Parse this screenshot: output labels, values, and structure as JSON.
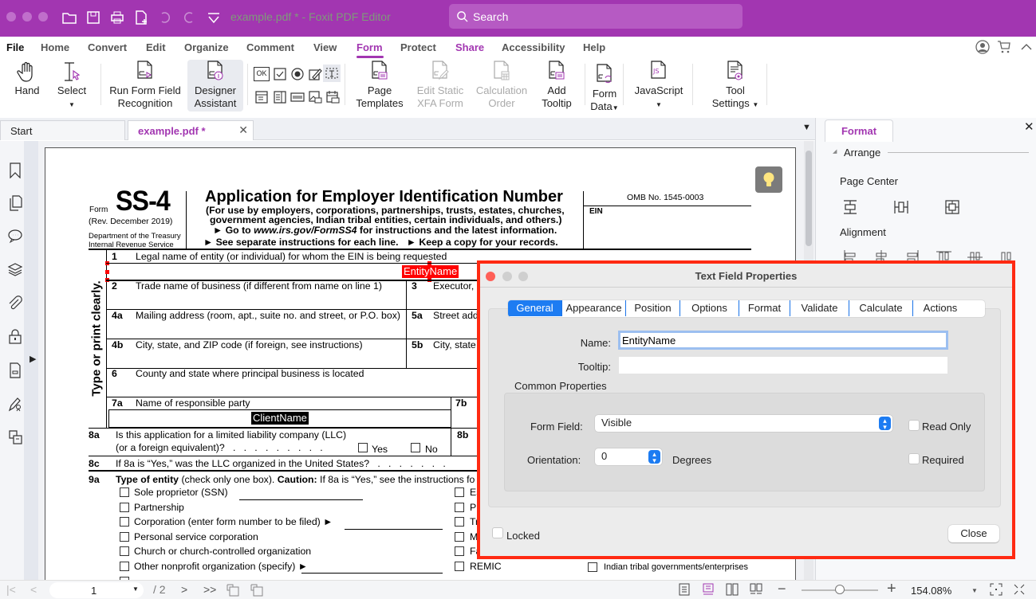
{
  "window": {
    "title": "example.pdf * - Foxit PDF Editor",
    "search_placeholder": "Search",
    "accent": "#a236b1"
  },
  "menu": [
    "File",
    "Home",
    "Convert",
    "Edit",
    "Organize",
    "Comment",
    "View",
    "Form",
    "Protect",
    "Share",
    "Accessibility",
    "Help"
  ],
  "active_menu": "Form",
  "ribbon": {
    "hand": "Hand",
    "select": "Select",
    "run_recognition_1": "Run Form Field",
    "run_recognition_2": "Recognition",
    "designer_1": "Designer",
    "designer_2": "Assistant",
    "page_templates_1": "Page",
    "page_templates_2": "Templates",
    "edit_xfa_1": "Edit Static",
    "edit_xfa_2": "XFA Form",
    "calc_order_1": "Calculation",
    "calc_order_2": "Order",
    "add_tooltip_1": "Add",
    "add_tooltip_2": "Tooltip",
    "form_data_1": "Form",
    "form_data_2": "Data",
    "javascript": "JavaScript",
    "tool_settings_1": "Tool",
    "tool_settings_2": "Settings",
    "ok_label": "OK",
    "js_label": "JS"
  },
  "tabs": {
    "start": "Start",
    "doc": "example.pdf *"
  },
  "form": {
    "form_word": "Form",
    "number": "SS-4",
    "rev": "(Rev. December 2019)",
    "dept1": "Department of the Treasury",
    "dept2": "Internal Revenue Service",
    "title": "Application for Employer Identification Number",
    "sub1": "(For use by employers, corporations, partnerships, trusts, estates, churches,",
    "sub2": "government agencies, Indian tribal entities, certain individuals, and others.)",
    "sub3a": "► Go to ",
    "sub3b": "www.irs.gov/FormSS4",
    "sub3c": " for instructions and the latest information.",
    "sub4": "► See separate instructions for each line.   ► Keep a copy for your records.",
    "omb": "OMB No. 1545-0003",
    "ein": "EIN",
    "side_label": "Type or print clearly.",
    "rows": {
      "n1": "1",
      "l1": "Legal name of entity (or individual) for whom the EIN is being requested",
      "n2": "2",
      "l2": "Trade name of business (if different from name on line 1)",
      "n3": "3",
      "l3": "Executor,",
      "n4a": "4a",
      "l4a": "Mailing address (room, apt., suite no. and street, or P.O. box)",
      "n5a": "5a",
      "l5a": "Street add",
      "n4b": "4b",
      "l4b": "City, state, and ZIP code (if foreign, see instructions)",
      "n5b": "5b",
      "l5b": "City, state",
      "n6": "6",
      "l6": "County and state where principal business is located",
      "n7a": "7a",
      "l7a": "Name of responsible party",
      "n7b": "7b",
      "n8a": "8a",
      "l8a1": "Is this application for a limited liability company (LLC)",
      "l8a2": "(or a foreign equivalent)?   .   .   .   .   .   .   .   .   .",
      "yes": "Yes",
      "no": "No",
      "n8b": "8b",
      "n8c": "8c",
      "l8c": "If 8a is “Yes,” was the LLC organized in the United States?   .   .   .   .   .   .   .",
      "n9a": "9a",
      "l9a_b1": "Type of entity",
      "l9a_1": " (check only one box). ",
      "l9a_b2": "Caution:",
      "l9a_2": " If 8a is “Yes,” see the instructions fo"
    },
    "entity_types_left": [
      "Sole proprietor (SSN)",
      "Partnership",
      "Corporation (enter form number to be filed) ►",
      "Personal service corporation",
      "Church or church-controlled organization",
      "Other nonprofit organization (specify) ►"
    ],
    "entity_types_right": [
      "Es",
      "Pl",
      "Tr",
      "M",
      "Fa",
      "REMIC"
    ],
    "indian_tribal": "Indian tribal governments/enterprises",
    "fields": {
      "entity": "EntityName",
      "client": "ClientName"
    }
  },
  "right_panel": {
    "tab": "Format",
    "arrange": "Arrange",
    "page_center": "Page Center",
    "alignment": "Alignment"
  },
  "dialog": {
    "title": "Text Field Properties",
    "tabs": [
      "General",
      "Appearance",
      "Position",
      "Options",
      "Format",
      "Validate",
      "Calculate",
      "Actions"
    ],
    "active_tab": "General",
    "name_label": "Name:",
    "name_value": "EntityName",
    "tooltip_label": "Tooltip:",
    "tooltip_value": "",
    "common": "Common Properties",
    "form_field_label": "Form Field:",
    "form_field_value": "Visible",
    "read_only": "Read Only",
    "read_only_checked": false,
    "orientation_label": "Orientation:",
    "orientation_value": "0",
    "degrees": "Degrees",
    "required": "Required",
    "required_checked": false,
    "locked": "Locked",
    "locked_checked": false,
    "close": "Close"
  },
  "bottom": {
    "page": "1",
    "total": "/ 2",
    "zoom": "154.08%",
    "zoom_slider_percent": 50
  }
}
